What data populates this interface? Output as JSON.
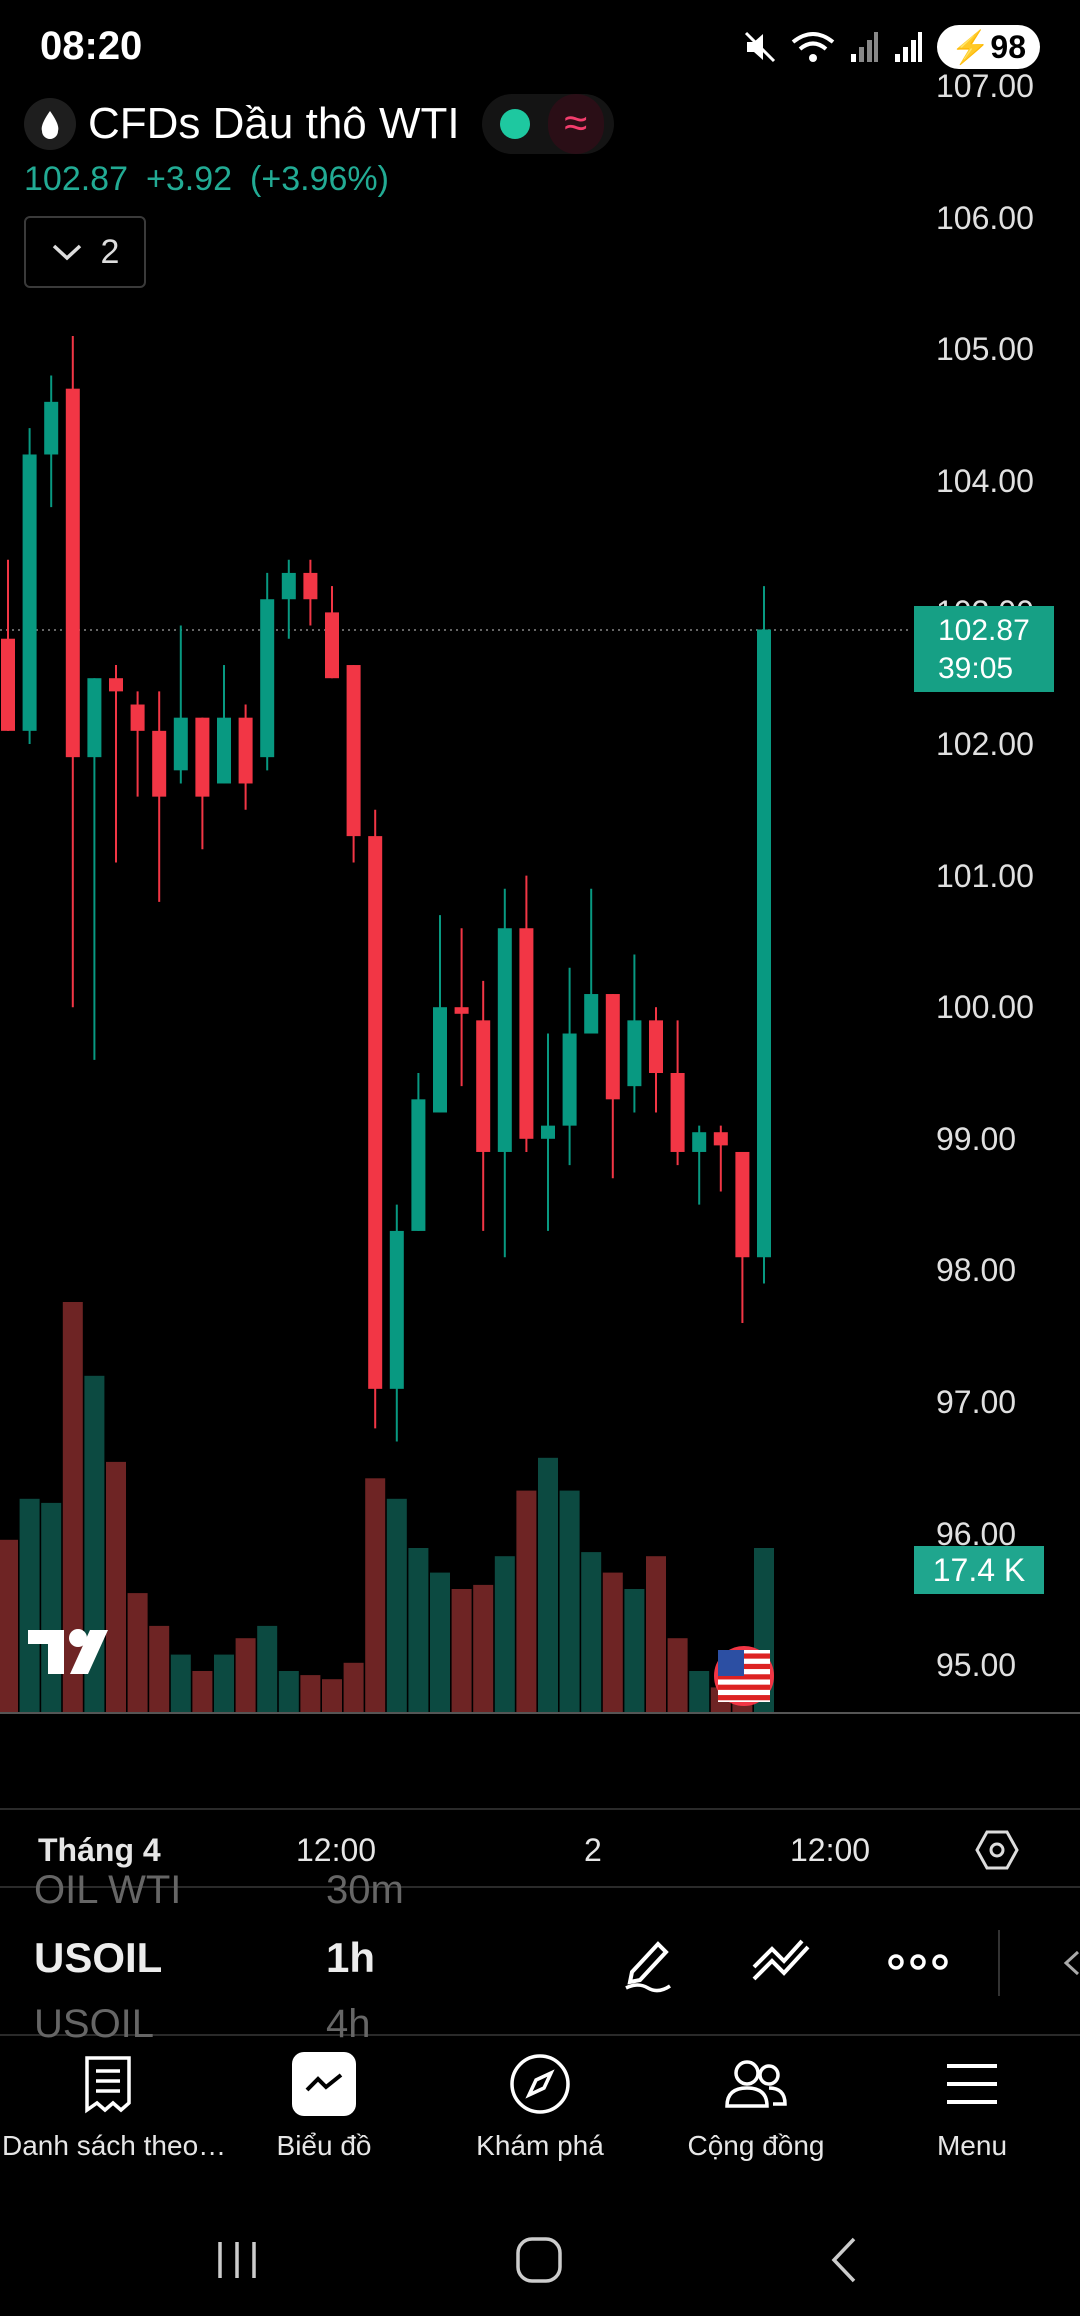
{
  "status_bar": {
    "time": "08:20",
    "battery": "98",
    "icons": [
      "mute-icon",
      "wifi-icon",
      "signal-icon",
      "signal-icon"
    ]
  },
  "symbol": {
    "name": "CFDs Dầu thô WTI",
    "icon": "drop-icon",
    "market_status_color": "#1ec8a0",
    "badge_glyph": "≈"
  },
  "quote": {
    "last": "102.87",
    "change": "+3.92",
    "change_percent": "(+3.96%)"
  },
  "indicator_toggle": {
    "count": "2"
  },
  "chart_data": {
    "type": "candlestick",
    "interval": "1h",
    "colors": {
      "up": "#089981",
      "down": "#f23645",
      "vol_up": "#0c4a41",
      "vol_down": "#6e2424"
    },
    "ylim": [
      94.6,
      107.3
    ],
    "price_ticks": [
      "107.00",
      "106.00",
      "105.00",
      "104.00",
      "103.00",
      "102.00",
      "101.00",
      "100.00",
      "99.00",
      "98.00",
      "97.00",
      "96.00",
      "95.00"
    ],
    "last_price": 102.87,
    "countdown": "39:05",
    "volume_label": "17.4 K",
    "candles": [
      {
        "o": 102.8,
        "h": 103.4,
        "l": 102.1,
        "c": 102.1
      },
      {
        "o": 102.1,
        "h": 104.4,
        "l": 102.0,
        "c": 104.2
      },
      {
        "o": 104.2,
        "h": 104.8,
        "l": 103.8,
        "c": 104.6
      },
      {
        "o": 104.7,
        "h": 105.1,
        "l": 100.0,
        "c": 101.9
      },
      {
        "o": 101.9,
        "h": 102.5,
        "l": 99.6,
        "c": 102.5
      },
      {
        "o": 102.5,
        "h": 102.6,
        "l": 101.1,
        "c": 102.4
      },
      {
        "o": 102.3,
        "h": 102.4,
        "l": 101.6,
        "c": 102.1
      },
      {
        "o": 102.1,
        "h": 102.4,
        "l": 100.8,
        "c": 101.6
      },
      {
        "o": 101.8,
        "h": 102.9,
        "l": 101.7,
        "c": 102.2
      },
      {
        "o": 102.2,
        "h": 102.2,
        "l": 101.2,
        "c": 101.6
      },
      {
        "o": 101.7,
        "h": 102.6,
        "l": 101.7,
        "c": 102.2
      },
      {
        "o": 102.2,
        "h": 102.3,
        "l": 101.5,
        "c": 101.7
      },
      {
        "o": 101.9,
        "h": 103.3,
        "l": 101.8,
        "c": 103.1
      },
      {
        "o": 103.1,
        "h": 103.4,
        "l": 102.8,
        "c": 103.3
      },
      {
        "o": 103.3,
        "h": 103.4,
        "l": 102.9,
        "c": 103.1
      },
      {
        "o": 103.0,
        "h": 103.2,
        "l": 102.5,
        "c": 102.5
      },
      {
        "o": 102.6,
        "h": 102.6,
        "l": 101.1,
        "c": 101.3
      },
      {
        "o": 101.3,
        "h": 101.5,
        "l": 96.8,
        "c": 97.1
      },
      {
        "o": 97.1,
        "h": 98.5,
        "l": 96.7,
        "c": 98.3
      },
      {
        "o": 98.3,
        "h": 99.5,
        "l": 98.3,
        "c": 99.3
      },
      {
        "o": 99.2,
        "h": 100.7,
        "l": 99.2,
        "c": 100.0
      },
      {
        "o": 100.0,
        "h": 100.6,
        "l": 99.4,
        "c": 99.95
      },
      {
        "o": 99.9,
        "h": 100.2,
        "l": 98.3,
        "c": 98.9
      },
      {
        "o": 98.9,
        "h": 100.9,
        "l": 98.1,
        "c": 100.6
      },
      {
        "o": 100.6,
        "h": 101.0,
        "l": 98.9,
        "c": 99.0
      },
      {
        "o": 99.0,
        "h": 99.8,
        "l": 98.3,
        "c": 99.1
      },
      {
        "o": 99.1,
        "h": 100.3,
        "l": 98.8,
        "c": 99.8
      },
      {
        "o": 99.8,
        "h": 100.9,
        "l": 99.8,
        "c": 100.1
      },
      {
        "o": 100.1,
        "h": 100.1,
        "l": 98.7,
        "c": 99.3
      },
      {
        "o": 99.4,
        "h": 100.4,
        "l": 99.2,
        "c": 99.9
      },
      {
        "o": 99.9,
        "h": 100.0,
        "l": 99.2,
        "c": 99.5
      },
      {
        "o": 99.5,
        "h": 99.9,
        "l": 98.8,
        "c": 98.9
      },
      {
        "o": 98.9,
        "h": 99.1,
        "l": 98.5,
        "c": 99.05
      },
      {
        "o": 99.05,
        "h": 99.1,
        "l": 98.6,
        "c": 98.95
      },
      {
        "o": 98.9,
        "h": 98.9,
        "l": 97.6,
        "c": 98.1
      },
      {
        "o": 98.1,
        "h": 103.2,
        "l": 97.9,
        "c": 102.87
      }
    ],
    "volumes": [
      0.42,
      0.52,
      0.51,
      1.0,
      0.82,
      0.61,
      0.29,
      0.21,
      0.14,
      0.1,
      0.14,
      0.18,
      0.21,
      0.1,
      0.09,
      0.08,
      0.12,
      0.57,
      0.52,
      0.4,
      0.34,
      0.3,
      0.31,
      0.38,
      0.54,
      0.62,
      0.54,
      0.39,
      0.34,
      0.3,
      0.38,
      0.18,
      0.1,
      0.06,
      0.09,
      0.4
    ],
    "time_ticks": [
      "Tháng 4",
      "12:00",
      "2",
      "12:00"
    ]
  },
  "toolbar": {
    "prev_symbol": "OIL WTI",
    "prev_tf": "30m",
    "symbol": "USOIL",
    "timeframe": "1h",
    "next_symbol": "USOIL",
    "next_tf": "4h"
  },
  "bottom_nav": {
    "items": [
      {
        "label": "Danh sách theo…",
        "icon": "watchlist-icon"
      },
      {
        "label": "Biểu đồ",
        "icon": "chart-icon",
        "active": true
      },
      {
        "label": "Khám phá",
        "icon": "compass-icon"
      },
      {
        "label": "Cộng đồng",
        "icon": "community-icon"
      },
      {
        "label": "Menu",
        "icon": "menu-icon"
      }
    ]
  }
}
